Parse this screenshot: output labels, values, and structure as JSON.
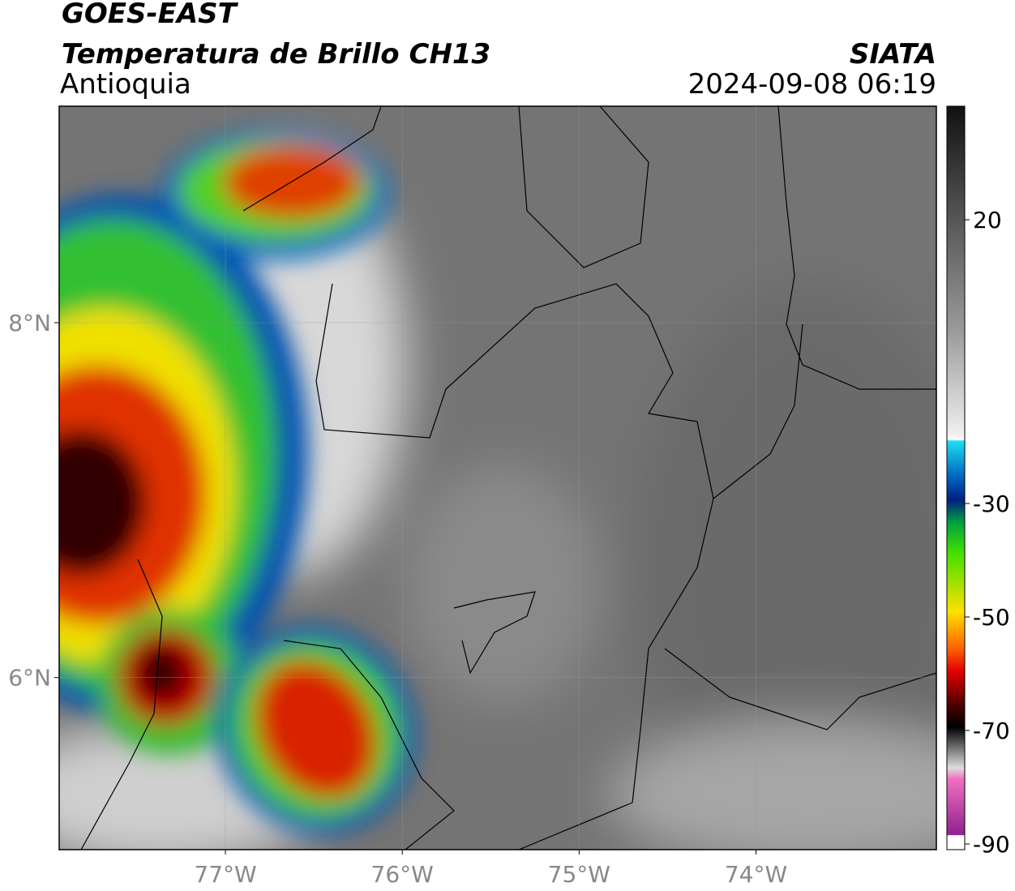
{
  "header": {
    "title": "GOES-EAST",
    "subtitle": "Temperatura de Brillo CH13",
    "region": "Antioquia",
    "source": "SIATA",
    "datetime": "2024-09-08 06:19"
  },
  "map": {
    "xlim": [
      -77.94,
      -72.98
    ],
    "ylim": [
      5.03,
      9.22
    ],
    "xticks": [
      {
        "value": -77,
        "label": "77°W"
      },
      {
        "value": -76,
        "label": "76°W"
      },
      {
        "value": -75,
        "label": "75°W"
      },
      {
        "value": -74,
        "label": "74°W"
      }
    ],
    "yticks": [
      {
        "value": 8,
        "label": "8°N"
      },
      {
        "value": 6,
        "label": "6°N"
      }
    ],
    "grid": true
  },
  "colorbar": {
    "lim": [
      -91,
      40
    ],
    "ticks": [
      20,
      -30,
      -50,
      -70,
      -90
    ]
  }
}
